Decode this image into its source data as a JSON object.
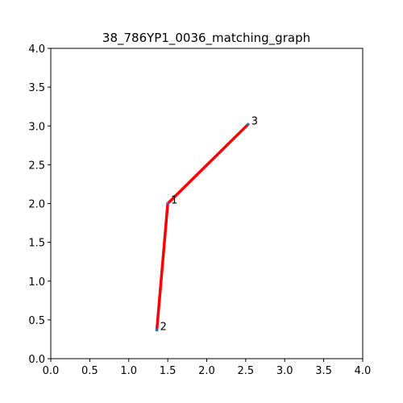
{
  "chart_data": {
    "type": "line",
    "title": "38_786YP1_0036_matching_graph",
    "xlabel": "",
    "ylabel": "",
    "xlim": [
      0,
      4
    ],
    "ylim": [
      0,
      4
    ],
    "x_ticks": [
      "0.0",
      "0.5",
      "1.0",
      "1.5",
      "2.0",
      "2.5",
      "3.0",
      "3.5",
      "4.0"
    ],
    "y_ticks": [
      "0.0",
      "0.5",
      "1.0",
      "1.5",
      "2.0",
      "2.5",
      "3.0",
      "3.5",
      "4.0"
    ],
    "grid": false,
    "line_color": "#ff0000",
    "nodes": [
      {
        "label": "1",
        "x": 1.5,
        "y": 2.0
      },
      {
        "label": "2",
        "x": 1.36,
        "y": 0.37
      },
      {
        "label": "3",
        "x": 2.53,
        "y": 3.02
      }
    ],
    "edges": [
      {
        "from": "2",
        "to": "1"
      },
      {
        "from": "1",
        "to": "3"
      }
    ]
  }
}
